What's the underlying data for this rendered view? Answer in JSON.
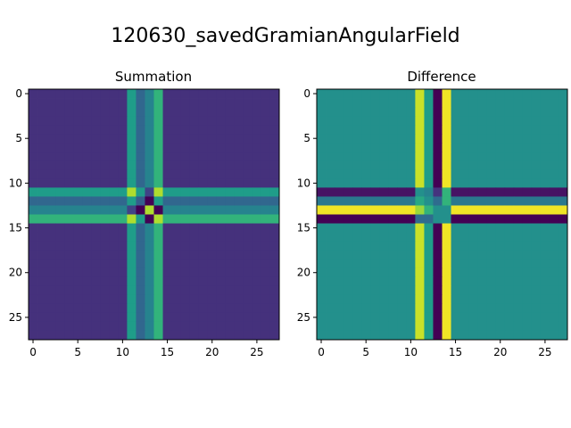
{
  "figure_title": "120630_savedGramianAngularField",
  "chart_data": [
    {
      "type": "heatmap",
      "title": "Summation",
      "size": 28,
      "xticks": [
        0,
        5,
        10,
        15,
        20,
        25
      ],
      "yticks": [
        0,
        5,
        10,
        15,
        20,
        25
      ],
      "xlim": [
        -0.5,
        27.5
      ],
      "ylim": [
        27.5,
        -0.5
      ],
      "grid": false,
      "active_indices": [
        11,
        12,
        13,
        14
      ],
      "background_value": 0.14,
      "active_values": [
        [
          0.88,
          0.55,
          0.2,
          0.88
        ],
        [
          0.55,
          0.3,
          0.0,
          0.55
        ],
        [
          0.2,
          0.0,
          0.88,
          0.0
        ],
        [
          0.88,
          0.55,
          0.0,
          0.88
        ]
      ],
      "cross_values": [
        0.55,
        0.33,
        0.45,
        0.65
      ]
    },
    {
      "type": "heatmap",
      "title": "Difference",
      "size": 28,
      "xticks": [
        0,
        5,
        10,
        15,
        20,
        25
      ],
      "yticks": [
        0,
        5,
        10,
        15,
        20,
        25
      ],
      "xlim": [
        -0.5,
        27.5
      ],
      "ylim": [
        27.5,
        -0.5
      ],
      "grid": false,
      "active_indices": [
        11,
        12,
        13,
        14
      ],
      "background_value": 0.5,
      "active_values": [
        [
          0.5,
          0.45,
          0.15,
          0.65
        ],
        [
          0.6,
          0.5,
          0.35,
          0.65
        ],
        [
          0.85,
          0.65,
          0.5,
          0.5
        ],
        [
          0.35,
          0.35,
          0.5,
          0.5
        ]
      ],
      "row_cross_values": [
        0.05,
        0.4,
        0.98,
        0.0
      ],
      "col_cross_values": [
        0.92,
        0.55,
        0.0,
        0.98
      ]
    }
  ]
}
